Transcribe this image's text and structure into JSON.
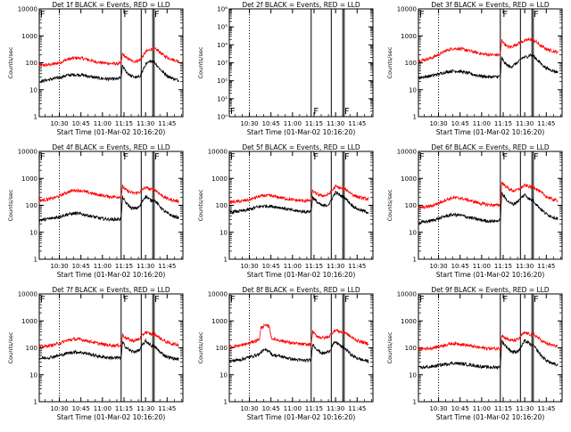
{
  "page": {
    "shared_xlabel": "Start Time (01-Mar-02 10:16:20)"
  },
  "x_ticks": [
    "10:30",
    "10:45",
    "11:00",
    "11:15",
    "11:30",
    "11:45"
  ],
  "x_tick_minutes": [
    30,
    45,
    60,
    75,
    90,
    105
  ],
  "xlim_minutes": [
    16,
    116
  ],
  "markers": {
    "dotted_minutes": [
      30
    ],
    "solid_minutes": [
      73,
      87,
      95,
      96
    ],
    "letters": [
      {
        "text": "F",
        "minute": 74
      },
      {
        "text": "F",
        "minute": 95.5
      }
    ]
  },
  "colors": {
    "events": "#000000",
    "lld": "#ff0000",
    "axes": "#000000"
  },
  "chart_data": [
    {
      "type": "line",
      "title": "Det 1f BLACK = Events, RED = LLD",
      "ylabel": "Counts/sec",
      "xlabel": "Start Time (01-Mar-02 10:16:20)",
      "yscale": "log",
      "ylim": [
        1,
        10000
      ],
      "y_tick_labels": [
        "1",
        "10",
        "100",
        "1000",
        "10000"
      ],
      "x": [
        16,
        20,
        25,
        30,
        35,
        40,
        45,
        50,
        55,
        60,
        65,
        70,
        73,
        74,
        76,
        78,
        80,
        82,
        84,
        86,
        88,
        90,
        92,
        94,
        96,
        98,
        100,
        102,
        104,
        106,
        108,
        110,
        113
      ],
      "series": [
        {
          "name": "BLACK = Events",
          "color": "#000000",
          "values": [
            20,
            22,
            25,
            28,
            34,
            36,
            36,
            32,
            28,
            26,
            25,
            25,
            28,
            80,
            50,
            40,
            32,
            30,
            28,
            32,
            50,
            85,
            100,
            120,
            110,
            80,
            60,
            45,
            38,
            30,
            28,
            25,
            22
          ]
        },
        {
          "name": "RED = LLD",
          "color": "#ff0000",
          "values": [
            80,
            82,
            88,
            100,
            130,
            150,
            150,
            130,
            110,
            100,
            95,
            93,
            95,
            220,
            160,
            140,
            120,
            115,
            115,
            125,
            170,
            250,
            290,
            320,
            330,
            300,
            250,
            200,
            170,
            150,
            140,
            125,
            115
          ]
        }
      ]
    },
    {
      "type": "line",
      "title": "Det 2f BLACK = Events, RED = LLD",
      "ylabel": "Counts/sec",
      "xlabel": "Start Time (01-Mar-02 10:16:20)",
      "yscale": "log",
      "ylim": [
        1,
        1000000
      ],
      "y_tick_labels": [
        "10^0",
        "10^1",
        "10^2",
        "10^3",
        "10^4",
        "10^5",
        "10^6"
      ],
      "x": [],
      "series": []
    },
    {
      "type": "line",
      "title": "Det 3f BLACK = Events, RED = LLD",
      "ylabel": "Counts/sec",
      "xlabel": "Start Time (01-Mar-02 10:16:20)",
      "yscale": "log",
      "ylim": [
        1,
        10000
      ],
      "y_tick_labels": [
        "1",
        "10",
        "100",
        "1000",
        "10000"
      ],
      "x": [
        16,
        20,
        25,
        30,
        35,
        40,
        45,
        50,
        55,
        60,
        65,
        70,
        73,
        74,
        76,
        78,
        80,
        82,
        84,
        86,
        88,
        90,
        92,
        94,
        96,
        98,
        100,
        102,
        104,
        106,
        108,
        110,
        113
      ],
      "series": [
        {
          "name": "BLACK = Events",
          "color": "#000000",
          "values": [
            28,
            30,
            33,
            38,
            45,
            50,
            48,
            42,
            36,
            32,
            30,
            30,
            32,
            150,
            100,
            80,
            70,
            80,
            95,
            110,
            150,
            160,
            170,
            200,
            180,
            140,
            110,
            85,
            70,
            60,
            55,
            50,
            45
          ]
        },
        {
          "name": "RED = LLD",
          "color": "#ff0000",
          "values": [
            120,
            130,
            150,
            200,
            280,
            340,
            330,
            290,
            250,
            215,
            200,
            195,
            200,
            700,
            500,
            400,
            380,
            420,
            480,
            540,
            600,
            650,
            700,
            750,
            700,
            600,
            480,
            400,
            350,
            310,
            290,
            270,
            250
          ]
        }
      ]
    },
    {
      "type": "line",
      "title": "Det 4f BLACK = Events, RED = LLD",
      "ylabel": "Counts/sec",
      "xlabel": "Start Time (01-Mar-02 10:16:20)",
      "yscale": "log",
      "ylim": [
        1,
        10000
      ],
      "y_tick_labels": [
        "1",
        "10",
        "100",
        "1000",
        "10000"
      ],
      "x": [
        16,
        20,
        25,
        30,
        35,
        40,
        45,
        50,
        55,
        60,
        65,
        70,
        73,
        74,
        76,
        78,
        80,
        82,
        84,
        86,
        88,
        90,
        92,
        94,
        96,
        98,
        100,
        102,
        104,
        106,
        108,
        110,
        113
      ],
      "series": [
        {
          "name": "BLACK = Events",
          "color": "#000000",
          "values": [
            28,
            30,
            33,
            38,
            45,
            50,
            48,
            42,
            36,
            32,
            30,
            30,
            32,
            200,
            130,
            100,
            80,
            75,
            80,
            90,
            150,
            220,
            180,
            150,
            160,
            120,
            90,
            70,
            55,
            48,
            42,
            38,
            35
          ]
        },
        {
          "name": "RED = LLD",
          "color": "#ff0000",
          "values": [
            150,
            160,
            180,
            220,
            300,
            360,
            350,
            300,
            260,
            230,
            210,
            205,
            210,
            500,
            380,
            330,
            300,
            280,
            290,
            310,
            400,
            460,
            420,
            380,
            400,
            330,
            260,
            220,
            190,
            170,
            160,
            150,
            140
          ]
        }
      ]
    },
    {
      "type": "line",
      "title": "Det 5f BLACK = Events, RED = LLD",
      "ylabel": "Counts/sec",
      "xlabel": "Start Time (01-Mar-02 10:16:20)",
      "yscale": "log",
      "ylim": [
        1,
        10000
      ],
      "y_tick_labels": [
        "1",
        "10",
        "100",
        "1000",
        "10000"
      ],
      "x": [
        16,
        20,
        25,
        30,
        35,
        40,
        45,
        50,
        55,
        60,
        65,
        70,
        73,
        74,
        76,
        78,
        80,
        82,
        84,
        86,
        88,
        90,
        92,
        94,
        96,
        98,
        100,
        102,
        104,
        106,
        108,
        110,
        113
      ],
      "series": [
        {
          "name": "BLACK = Events",
          "color": "#000000",
          "values": [
            55,
            58,
            62,
            70,
            85,
            95,
            92,
            85,
            75,
            65,
            60,
            58,
            60,
            200,
            150,
            120,
            100,
            95,
            100,
            120,
            200,
            300,
            260,
            220,
            200,
            160,
            120,
            95,
            80,
            70,
            65,
            60,
            55
          ]
        },
        {
          "name": "RED = LLD",
          "color": "#ff0000",
          "values": [
            130,
            135,
            145,
            160,
            200,
            230,
            225,
            200,
            180,
            160,
            150,
            148,
            150,
            350,
            280,
            250,
            230,
            230,
            240,
            280,
            380,
            500,
            460,
            420,
            420,
            360,
            300,
            250,
            220,
            200,
            190,
            180,
            170
          ]
        }
      ]
    },
    {
      "type": "line",
      "title": "Det 6f BLACK = Events, RED = LLD",
      "ylabel": "Counts/sec",
      "xlabel": "Start Time (01-Mar-02 10:16:20)",
      "yscale": "log",
      "ylim": [
        1,
        10000
      ],
      "y_tick_labels": [
        "1",
        "10",
        "100",
        "1000",
        "10000"
      ],
      "x": [
        16,
        20,
        25,
        30,
        35,
        40,
        45,
        50,
        55,
        60,
        65,
        70,
        73,
        74,
        76,
        78,
        80,
        82,
        84,
        86,
        88,
        90,
        92,
        94,
        96,
        98,
        100,
        102,
        104,
        106,
        108,
        110,
        113
      ],
      "series": [
        {
          "name": "BLACK = Events",
          "color": "#000000",
          "values": [
            22,
            24,
            27,
            32,
            40,
            45,
            43,
            37,
            32,
            28,
            26,
            26,
            28,
            280,
            200,
            150,
            120,
            110,
            130,
            150,
            200,
            250,
            200,
            160,
            150,
            110,
            85,
            65,
            52,
            45,
            40,
            36,
            32
          ]
        },
        {
          "name": "RED = LLD",
          "color": "#ff0000",
          "values": [
            80,
            85,
            95,
            120,
            160,
            190,
            185,
            160,
            135,
            115,
            105,
            100,
            105,
            700,
            550,
            450,
            380,
            350,
            360,
            400,
            480,
            550,
            520,
            480,
            500,
            420,
            340,
            280,
            230,
            200,
            180,
            160,
            150
          ]
        }
      ]
    },
    {
      "type": "line",
      "title": "Det 7f BLACK = Events, RED = LLD",
      "ylabel": "Counts/sec",
      "xlabel": "Start Time (01-Mar-02 10:16:20)",
      "yscale": "log",
      "ylim": [
        1,
        10000
      ],
      "y_tick_labels": [
        "1",
        "10",
        "100",
        "1000",
        "10000"
      ],
      "x": [
        16,
        20,
        25,
        30,
        35,
        40,
        45,
        50,
        55,
        60,
        65,
        70,
        73,
        74,
        76,
        78,
        80,
        82,
        84,
        86,
        88,
        90,
        92,
        94,
        96,
        98,
        100,
        102,
        104,
        106,
        108,
        110,
        113
      ],
      "series": [
        {
          "name": "BLACK = Events",
          "color": "#000000",
          "values": [
            40,
            42,
            46,
            52,
            62,
            70,
            68,
            60,
            52,
            46,
            43,
            42,
            44,
            160,
            110,
            90,
            75,
            72,
            75,
            85,
            130,
            180,
            150,
            120,
            115,
            90,
            70,
            58,
            50,
            45,
            42,
            40,
            38
          ]
        },
        {
          "name": "RED = LLD",
          "color": "#ff0000",
          "values": [
            110,
            115,
            125,
            145,
            185,
            210,
            205,
            180,
            155,
            135,
            125,
            122,
            125,
            300,
            240,
            210,
            190,
            185,
            195,
            220,
            300,
            380,
            350,
            320,
            330,
            280,
            230,
            195,
            170,
            155,
            145,
            138,
            130
          ]
        }
      ]
    },
    {
      "type": "line",
      "title": "Det 8f BLACK = Events, RED = LLD",
      "ylabel": "Counts/sec",
      "xlabel": "Start Time (01-Mar-02 10:16:20)",
      "yscale": "log",
      "ylim": [
        1,
        10000
      ],
      "y_tick_labels": [
        "1",
        "10",
        "100",
        "1000",
        "10000"
      ],
      "x": [
        16,
        20,
        25,
        30,
        35,
        37,
        38,
        40,
        42,
        44,
        45,
        46,
        50,
        55,
        60,
        65,
        70,
        73,
        74,
        76,
        78,
        80,
        82,
        84,
        86,
        88,
        90,
        92,
        94,
        96,
        98,
        100,
        102,
        104,
        106,
        108,
        110,
        113
      ],
      "series": [
        {
          "name": "BLACK = Events",
          "color": "#000000",
          "values": [
            32,
            34,
            38,
            45,
            55,
            58,
            70,
            80,
            82,
            78,
            60,
            55,
            50,
            44,
            38,
            35,
            34,
            36,
            140,
            100,
            80,
            65,
            62,
            68,
            80,
            130,
            160,
            140,
            110,
            100,
            80,
            62,
            50,
            44,
            40,
            36,
            34,
            32
          ]
        },
        {
          "name": "RED = LLD",
          "color": "#ff0000",
          "values": [
            110,
            115,
            125,
            150,
            190,
            210,
            550,
            650,
            660,
            640,
            250,
            220,
            195,
            170,
            150,
            138,
            132,
            135,
            400,
            300,
            260,
            240,
            235,
            245,
            280,
            380,
            450,
            420,
            380,
            390,
            330,
            270,
            230,
            200,
            180,
            165,
            155,
            145
          ]
        }
      ]
    },
    {
      "type": "line",
      "title": "Det 9f BLACK = Events, RED = LLD",
      "ylabel": "Counts/sec",
      "xlabel": "Start Time (01-Mar-02 10:16:20)",
      "yscale": "log",
      "ylim": [
        1,
        10000
      ],
      "y_tick_labels": [
        "1",
        "10",
        "100",
        "1000",
        "10000"
      ],
      "x": [
        16,
        20,
        25,
        30,
        35,
        40,
        45,
        50,
        55,
        60,
        65,
        70,
        73,
        74,
        76,
        78,
        80,
        82,
        84,
        86,
        88,
        90,
        92,
        94,
        96,
        98,
        100,
        102,
        104,
        106,
        108,
        110,
        113
      ],
      "series": [
        {
          "name": "BLACK = Events",
          "color": "#000000",
          "values": [
            18,
            19,
            20,
            22,
            25,
            27,
            26,
            24,
            22,
            20,
            19,
            19,
            20,
            180,
            130,
            100,
            80,
            70,
            72,
            80,
            120,
            180,
            160,
            130,
            120,
            90,
            65,
            48,
            38,
            32,
            28,
            25,
            22
          ]
        },
        {
          "name": "RED = LLD",
          "color": "#ff0000",
          "values": [
            90,
            92,
            98,
            110,
            130,
            145,
            140,
            125,
            110,
            100,
            95,
            94,
            96,
            300,
            240,
            210,
            190,
            185,
            195,
            220,
            300,
            360,
            340,
            310,
            320,
            270,
            220,
            180,
            155,
            140,
            130,
            122,
            115
          ]
        }
      ]
    }
  ]
}
